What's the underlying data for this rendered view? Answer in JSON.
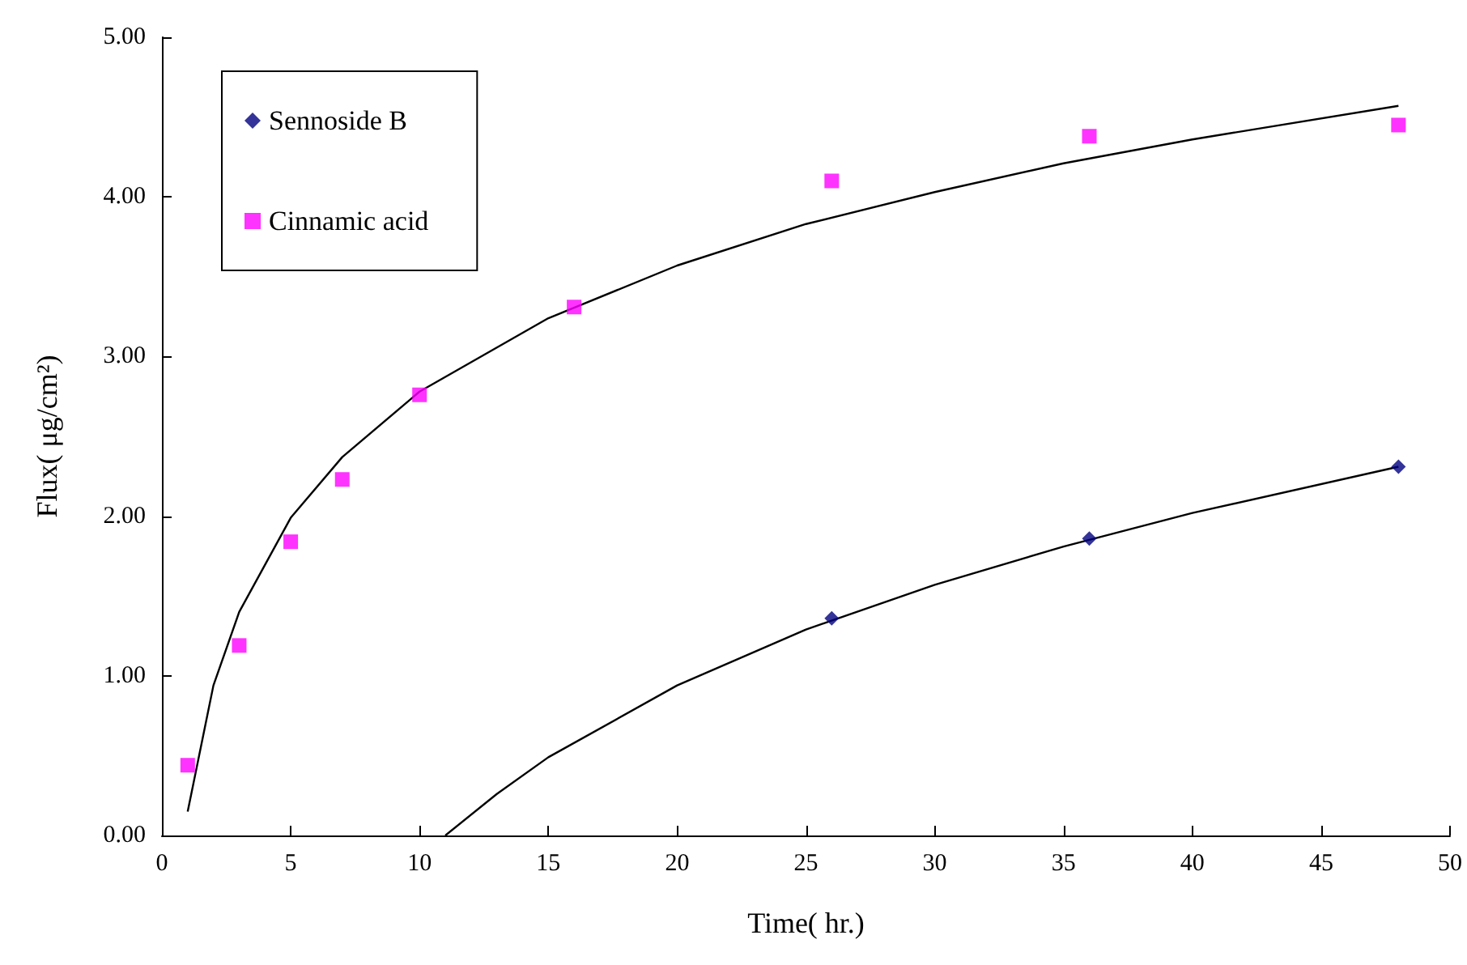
{
  "chart_data": {
    "type": "scatter",
    "xlabel": "Time( hr.)",
    "ylabel": "Flux( μg/cm²)",
    "xlim": [
      0,
      50
    ],
    "xticks": [
      0,
      5,
      10,
      15,
      20,
      25,
      30,
      35,
      40,
      45,
      50
    ],
    "ylim": [
      0,
      5
    ],
    "yticks": [
      {
        "value": 0,
        "label": "0.00"
      },
      {
        "value": 1,
        "label": "1.00"
      },
      {
        "value": 2,
        "label": "2.00"
      },
      {
        "value": 3,
        "label": "3.00"
      },
      {
        "value": 4,
        "label": "4.00"
      },
      {
        "value": 5,
        "label": "5.00"
      }
    ],
    "grid": false,
    "legend": "top left",
    "series": [
      {
        "name": "Sennoside B",
        "color": "#000080",
        "marker": "diamond",
        "x": [
          26,
          36,
          48
        ],
        "values": [
          1.36,
          1.86,
          2.31
        ]
      },
      {
        "name": "Cinnamic acid",
        "color": "#ff00ff",
        "marker": "square",
        "x": [
          1,
          3,
          5,
          7,
          10,
          16,
          26,
          36,
          48
        ],
        "values": [
          0.44,
          1.19,
          1.84,
          2.23,
          2.76,
          3.31,
          4.1,
          4.38,
          4.45
        ]
      },
      {
        "type": "line",
        "color": "#000000",
        "marker": "none",
        "line_style": "solid",
        "x": [
          1,
          2,
          3,
          5,
          7,
          10,
          15,
          20,
          25,
          30,
          35,
          40,
          48
        ],
        "values": [
          0.15,
          0.94,
          1.4,
          1.99,
          2.37,
          2.78,
          3.24,
          3.57,
          3.83,
          4.03,
          4.21,
          4.36,
          4.57
        ]
      },
      {
        "type": "line",
        "color": "#000000",
        "marker": "none",
        "line_style": "solid",
        "x": [
          11,
          13,
          15,
          20,
          25,
          30,
          35,
          40,
          48
        ],
        "values": [
          0,
          0.26,
          0.49,
          0.94,
          1.29,
          1.57,
          1.81,
          2.02,
          2.31
        ]
      }
    ]
  }
}
